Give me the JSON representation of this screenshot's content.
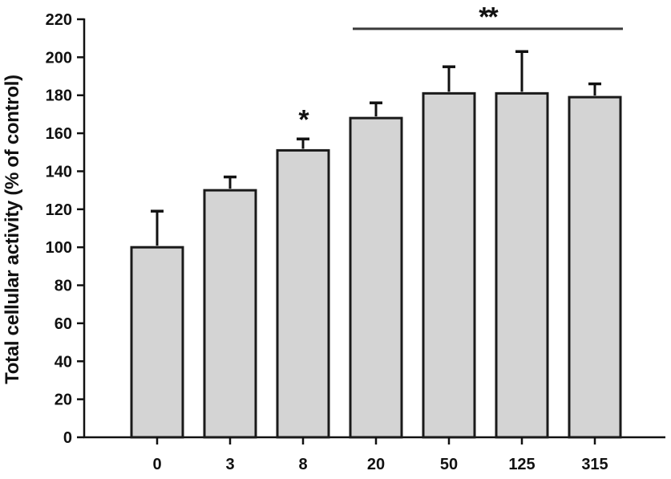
{
  "figure": {
    "background": "#ffffff",
    "axis_color": "#111111"
  },
  "chart_data": {
    "type": "bar",
    "title": "",
    "xlabel": "",
    "ylabel": "Total cellular activity (% of control)",
    "categories": [
      "0",
      "3",
      "8",
      "20",
      "50",
      "125",
      "315"
    ],
    "values": [
      100,
      130,
      151,
      168,
      181,
      181,
      179
    ],
    "errors_upper": [
      19,
      7,
      6,
      8,
      14,
      22,
      7
    ],
    "ylim": [
      0,
      220
    ],
    "ytick_step": 20,
    "ytick_labels": [
      "0",
      "20",
      "40",
      "60",
      "80",
      "100",
      "120",
      "140",
      "160",
      "180",
      "200",
      "220"
    ],
    "grid": false,
    "legend": null,
    "bar_fill": "#d4d4d4",
    "bar_stroke": "#1a1a1a",
    "error_bar_color": "#111111",
    "annotations": [
      {
        "type": "star",
        "label": "*",
        "category": "8",
        "level": 170
      },
      {
        "type": "bracket-line",
        "label": "**",
        "from_category": "20",
        "to_category": "315",
        "level": 215,
        "label_level": 224,
        "line_color": "#3a3a3a"
      }
    ]
  }
}
